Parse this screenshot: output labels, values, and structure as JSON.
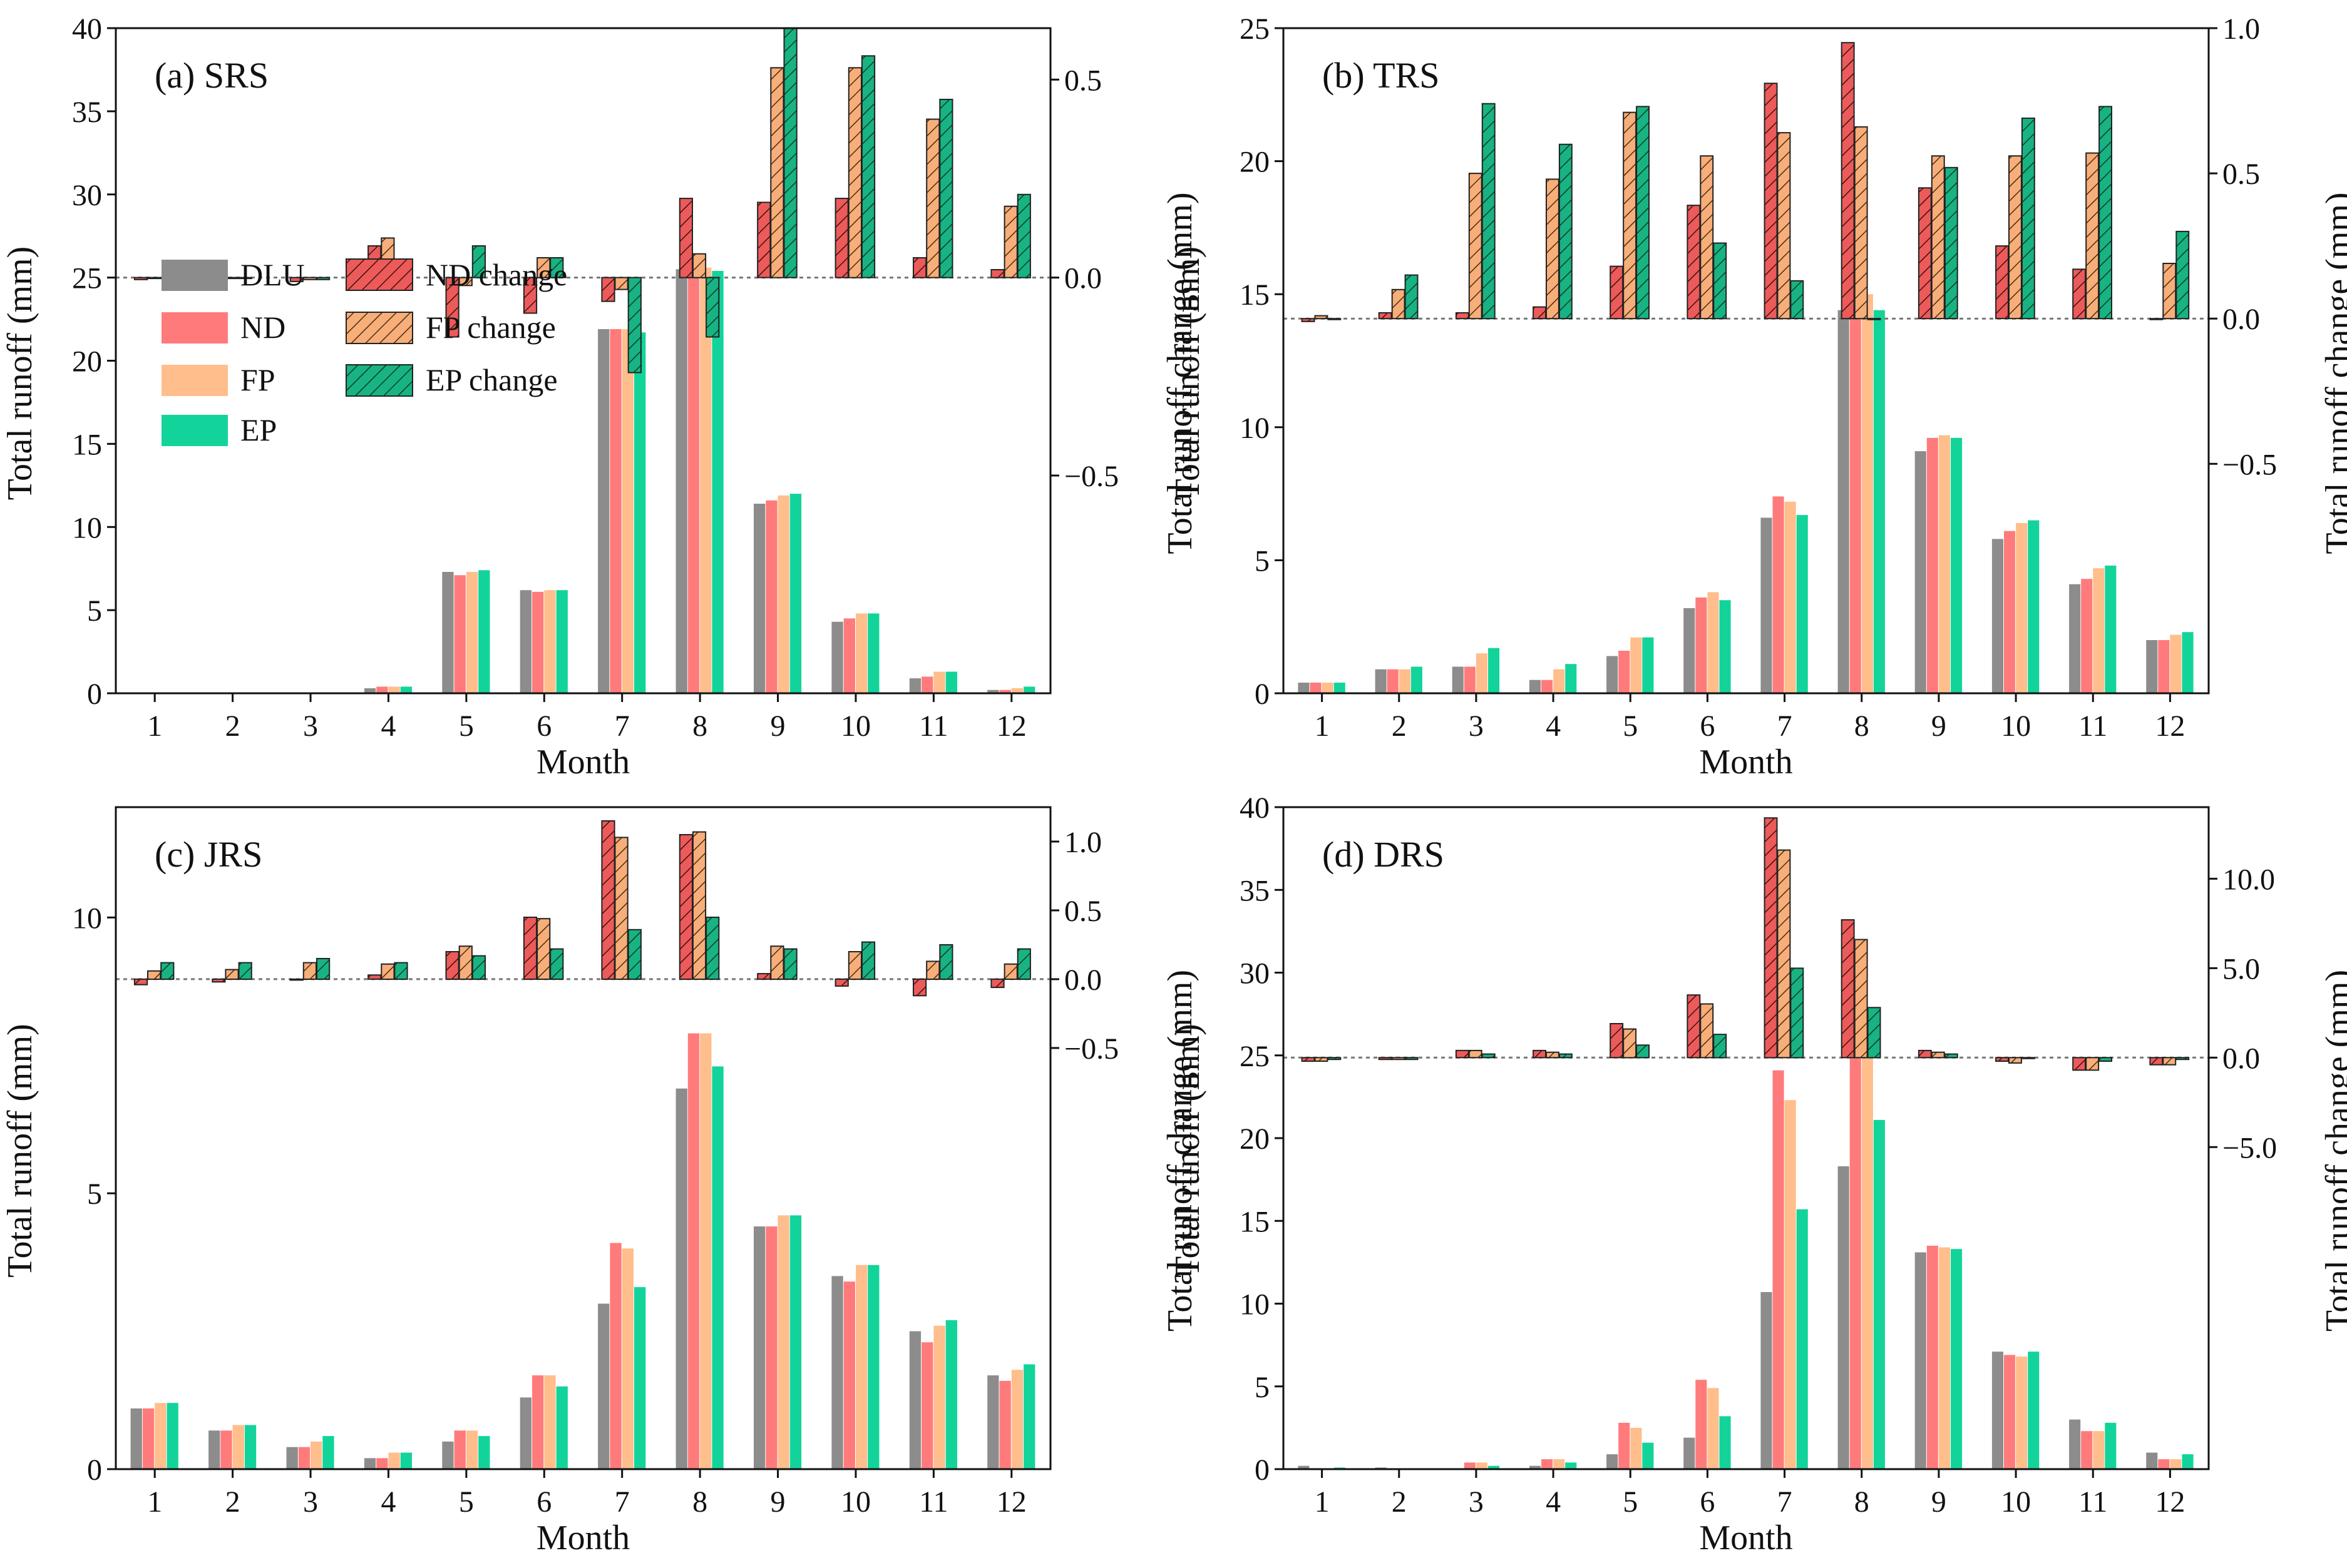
{
  "chart_data": [
    {
      "type": "bar",
      "title": "(a) SRS",
      "xlabel": "Month",
      "ylabel": "Total runoff (mm)",
      "y2label": "Total runoff change (mm)",
      "categories": [
        "1",
        "2",
        "3",
        "4",
        "5",
        "6",
        "7",
        "8",
        "9",
        "10",
        "11",
        "12"
      ],
      "ylim": [
        0,
        40
      ],
      "yticks": [
        0,
        5,
        10,
        15,
        20,
        25,
        30,
        35,
        40
      ],
      "y2lim": [
        -1.05,
        0.63
      ],
      "y2ticks": [
        -0.5,
        0,
        0.5
      ],
      "y2ticklabels": [
        "−0.5",
        "0.0",
        "0.5"
      ],
      "series": [
        {
          "name": "DLU",
          "values": [
            0,
            0,
            0,
            0.3,
            7.3,
            6.2,
            21.9,
            25.5,
            11.4,
            4.3,
            0.9,
            0.2
          ]
        },
        {
          "name": "ND",
          "values": [
            0,
            0,
            0,
            0.4,
            7.1,
            6.1,
            21.9,
            25.7,
            11.6,
            4.5,
            1.0,
            0.2
          ]
        },
        {
          "name": "FP",
          "values": [
            0,
            0,
            0,
            0.4,
            7.3,
            6.2,
            21.9,
            25.6,
            11.9,
            4.8,
            1.3,
            0.3
          ]
        },
        {
          "name": "EP",
          "values": [
            0,
            0,
            0,
            0.4,
            7.4,
            6.2,
            21.7,
            25.4,
            12.0,
            4.8,
            1.3,
            0.4
          ]
        }
      ],
      "change_series": [
        {
          "name": "ND change",
          "values": [
            -0.005,
            -0.005,
            -0.01,
            0.08,
            -0.15,
            -0.09,
            -0.06,
            0.2,
            0.19,
            0.2,
            0.05,
            0.02
          ]
        },
        {
          "name": "FP change",
          "values": [
            -0.002,
            -0.002,
            -0.005,
            0.1,
            -0.02,
            0.05,
            -0.03,
            0.06,
            0.53,
            0.53,
            0.4,
            0.18
          ]
        },
        {
          "name": "EP change",
          "values": [
            -0.002,
            0,
            -0.005,
            0.04,
            0.08,
            0.05,
            -0.24,
            -0.15,
            0.63,
            0.56,
            0.45,
            0.21
          ]
        }
      ]
    },
    {
      "type": "bar",
      "title": "(b) TRS",
      "xlabel": "Month",
      "ylabel": "Total runoff (mm)",
      "y2label": "Total runoff change (mm)",
      "categories": [
        "1",
        "2",
        "3",
        "4",
        "5",
        "6",
        "7",
        "8",
        "9",
        "10",
        "11",
        "12"
      ],
      "ylim": [
        0,
        25
      ],
      "yticks": [
        0,
        5,
        10,
        15,
        20,
        25
      ],
      "y2lim": [
        -1.29,
        1.0
      ],
      "y2ticks": [
        -0.5,
        0,
        0.5,
        1.0
      ],
      "y2ticklabels": [
        "−0.5",
        "0.0",
        "0.5",
        "1.0"
      ],
      "series": [
        {
          "name": "DLU",
          "values": [
            0.4,
            0.9,
            1.0,
            0.5,
            1.4,
            3.2,
            6.6,
            14.4,
            9.1,
            5.8,
            4.1,
            2.0
          ]
        },
        {
          "name": "ND",
          "values": [
            0.4,
            0.9,
            1.0,
            0.5,
            1.6,
            3.6,
            7.4,
            15.3,
            9.6,
            6.1,
            4.3,
            2.0
          ]
        },
        {
          "name": "FP",
          "values": [
            0.4,
            0.9,
            1.5,
            0.9,
            2.1,
            3.8,
            7.2,
            15.0,
            9.7,
            6.4,
            4.7,
            2.2
          ]
        },
        {
          "name": "EP",
          "values": [
            0.4,
            1.0,
            1.7,
            1.1,
            2.1,
            3.5,
            6.7,
            14.4,
            9.6,
            6.5,
            4.8,
            2.3
          ]
        }
      ],
      "change_series": [
        {
          "name": "ND change",
          "values": [
            -0.01,
            0.02,
            0.02,
            0.04,
            0.18,
            0.39,
            0.81,
            0.95,
            0.45,
            0.25,
            0.17,
            0.0
          ]
        },
        {
          "name": "FP change",
          "values": [
            0.01,
            0.1,
            0.5,
            0.48,
            0.71,
            0.56,
            0.64,
            0.66,
            0.56,
            0.56,
            0.57,
            0.19
          ]
        },
        {
          "name": "EP change",
          "values": [
            0.0,
            0.15,
            0.74,
            0.6,
            0.73,
            0.26,
            0.13,
            0.0,
            0.52,
            0.69,
            0.73,
            0.3
          ]
        }
      ]
    },
    {
      "type": "bar",
      "title": "(c) JRS",
      "xlabel": "Month",
      "ylabel": "Total runoff (mm)",
      "y2label": "Total runoff change (mm)",
      "categories": [
        "1",
        "2",
        "3",
        "4",
        "5",
        "6",
        "7",
        "8",
        "9",
        "10",
        "11",
        "12"
      ],
      "ylim": [
        0,
        12
      ],
      "yticks": [
        0,
        5,
        10
      ],
      "y2lim": [
        -3.56,
        1.25
      ],
      "y2ticks": [
        -0.5,
        0,
        0.5,
        1.0
      ],
      "y2ticklabels": [
        "−0.5",
        "0.0",
        "0.5",
        "1.0"
      ],
      "series": [
        {
          "name": "DLU",
          "values": [
            1.1,
            0.7,
            0.4,
            0.2,
            0.5,
            1.3,
            3.0,
            6.9,
            4.4,
            3.5,
            2.5,
            1.7
          ]
        },
        {
          "name": "ND",
          "values": [
            1.1,
            0.7,
            0.4,
            0.2,
            0.7,
            1.7,
            4.1,
            7.9,
            4.4,
            3.4,
            2.3,
            1.6
          ]
        },
        {
          "name": "FP",
          "values": [
            1.2,
            0.8,
            0.5,
            0.3,
            0.7,
            1.7,
            4.0,
            7.9,
            4.6,
            3.7,
            2.6,
            1.8
          ]
        },
        {
          "name": "EP",
          "values": [
            1.2,
            0.8,
            0.6,
            0.3,
            0.6,
            1.5,
            3.3,
            7.3,
            4.6,
            3.7,
            2.7,
            1.9
          ]
        }
      ],
      "change_series": [
        {
          "name": "ND change",
          "values": [
            -0.04,
            -0.02,
            0.0,
            0.03,
            0.2,
            0.45,
            1.15,
            1.05,
            0.04,
            -0.05,
            -0.12,
            -0.06
          ]
        },
        {
          "name": "FP change",
          "values": [
            0.06,
            0.07,
            0.12,
            0.11,
            0.24,
            0.44,
            1.03,
            1.07,
            0.24,
            0.2,
            0.13,
            0.11
          ]
        },
        {
          "name": "EP change",
          "values": [
            0.12,
            0.12,
            0.15,
            0.12,
            0.17,
            0.22,
            0.36,
            0.45,
            0.22,
            0.27,
            0.25,
            0.22
          ]
        }
      ]
    },
    {
      "type": "bar",
      "title": "(d) DRS",
      "xlabel": "Month",
      "ylabel": "Total runoff (mm)",
      "y2label": "Total runoff change (mm)",
      "categories": [
        "1",
        "2",
        "3",
        "4",
        "5",
        "6",
        "7",
        "8",
        "9",
        "10",
        "11",
        "12"
      ],
      "ylim": [
        0,
        40
      ],
      "yticks": [
        0,
        5,
        10,
        15,
        20,
        25,
        30,
        35,
        40
      ],
      "y2lim": [
        -23.0,
        14.0
      ],
      "y2ticks": [
        -5,
        0,
        5,
        10
      ],
      "y2ticklabels": [
        "−5.0",
        "0.0",
        "5.0",
        "10.0"
      ],
      "series": [
        {
          "name": "DLU",
          "values": [
            0.2,
            0.1,
            0.0,
            0.2,
            0.9,
            1.9,
            10.7,
            18.3,
            13.1,
            7.1,
            3.0,
            1.0
          ]
        },
        {
          "name": "ND",
          "values": [
            0.0,
            0.0,
            0.4,
            0.6,
            2.8,
            5.4,
            24.1,
            26.0,
            13.5,
            6.9,
            2.3,
            0.6
          ]
        },
        {
          "name": "FP",
          "values": [
            0.0,
            0.0,
            0.4,
            0.6,
            2.5,
            4.9,
            22.3,
            24.9,
            13.4,
            6.8,
            2.3,
            0.6
          ]
        },
        {
          "name": "EP",
          "values": [
            0.1,
            0.0,
            0.2,
            0.4,
            1.6,
            3.2,
            15.7,
            21.1,
            13.3,
            7.1,
            2.8,
            0.9
          ]
        }
      ],
      "change_series": [
        {
          "name": "ND change",
          "values": [
            -0.2,
            -0.1,
            0.4,
            0.4,
            1.9,
            3.5,
            13.4,
            7.7,
            0.4,
            -0.2,
            -0.7,
            -0.4
          ]
        },
        {
          "name": "FP change",
          "values": [
            -0.2,
            -0.1,
            0.4,
            0.3,
            1.6,
            3.0,
            11.6,
            6.6,
            0.3,
            -0.3,
            -0.7,
            -0.4
          ]
        },
        {
          "name": "EP change",
          "values": [
            -0.1,
            -0.1,
            0.2,
            0.2,
            0.7,
            1.3,
            5.0,
            2.8,
            0.2,
            0.0,
            -0.2,
            -0.1
          ]
        }
      ]
    }
  ],
  "legend": {
    "items": [
      {
        "label": "DLU",
        "color": "#8c8c8c",
        "hatch": false
      },
      {
        "label": "ND",
        "color": "#ff7b7b",
        "hatch": false
      },
      {
        "label": "FP",
        "color": "#ffbe8c",
        "hatch": false
      },
      {
        "label": "EP",
        "color": "#12d49a",
        "hatch": false
      },
      {
        "label": "ND change",
        "color": "#ec5a5a",
        "hatch": true
      },
      {
        "label": "FP change",
        "color": "#f7ae79",
        "hatch": true
      },
      {
        "label": "EP change",
        "color": "#18b382",
        "hatch": true
      }
    ]
  },
  "colors": {
    "DLU": "#8c8c8c",
    "ND": "#ff7b7b",
    "FP": "#ffbe8c",
    "EP": "#12d49a",
    "ND_change": "#ec5a5a",
    "FP_change": "#f7ae79",
    "EP_change": "#18b382"
  }
}
